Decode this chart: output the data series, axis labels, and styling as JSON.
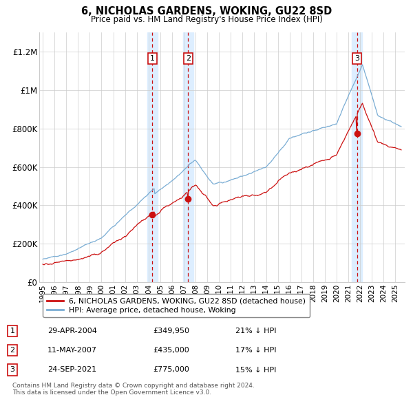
{
  "title": "6, NICHOLAS GARDENS, WOKING, GU22 8SD",
  "subtitle": "Price paid vs. HM Land Registry's House Price Index (HPI)",
  "sales": [
    {
      "date": 2004.33,
      "price": 349950,
      "label": "1"
    },
    {
      "date": 2007.37,
      "price": 435000,
      "label": "2"
    },
    {
      "date": 2021.73,
      "price": 775000,
      "label": "3"
    }
  ],
  "sale_labels": [
    {
      "num": "1",
      "date": "29-APR-2004",
      "price": "£349,950",
      "pct": "21% ↓ HPI"
    },
    {
      "num": "2",
      "date": "11-MAY-2007",
      "price": "£435,000",
      "pct": "17% ↓ HPI"
    },
    {
      "num": "3",
      "date": "24-SEP-2021",
      "price": "£775,000",
      "pct": "15% ↓ HPI"
    }
  ],
  "vline_dates": [
    2004.33,
    2007.37,
    2021.73
  ],
  "hpi_color": "#7aadd4",
  "sale_color": "#cc1111",
  "vline_color": "#cc1111",
  "shade_color": "#ddeeff",
  "background_color": "#ffffff",
  "grid_color": "#cccccc",
  "ylim": [
    0,
    1300000
  ],
  "xlim": [
    1994.7,
    2025.8
  ],
  "yticks": [
    0,
    200000,
    400000,
    600000,
    800000,
    1000000,
    1200000
  ],
  "ytick_labels": [
    "£0",
    "£200K",
    "£400K",
    "£600K",
    "£800K",
    "£1M",
    "£1.2M"
  ],
  "xticks": [
    1995,
    1996,
    1997,
    1998,
    1999,
    2000,
    2001,
    2002,
    2003,
    2004,
    2005,
    2006,
    2007,
    2008,
    2009,
    2010,
    2011,
    2012,
    2013,
    2014,
    2015,
    2016,
    2017,
    2018,
    2019,
    2020,
    2021,
    2022,
    2023,
    2024,
    2025
  ],
  "legend_sale_label": "6, NICHOLAS GARDENS, WOKING, GU22 8SD (detached house)",
  "legend_hpi_label": "HPI: Average price, detached house, Woking",
  "footer": "Contains HM Land Registry data © Crown copyright and database right 2024.\nThis data is licensed under the Open Government Licence v3.0."
}
